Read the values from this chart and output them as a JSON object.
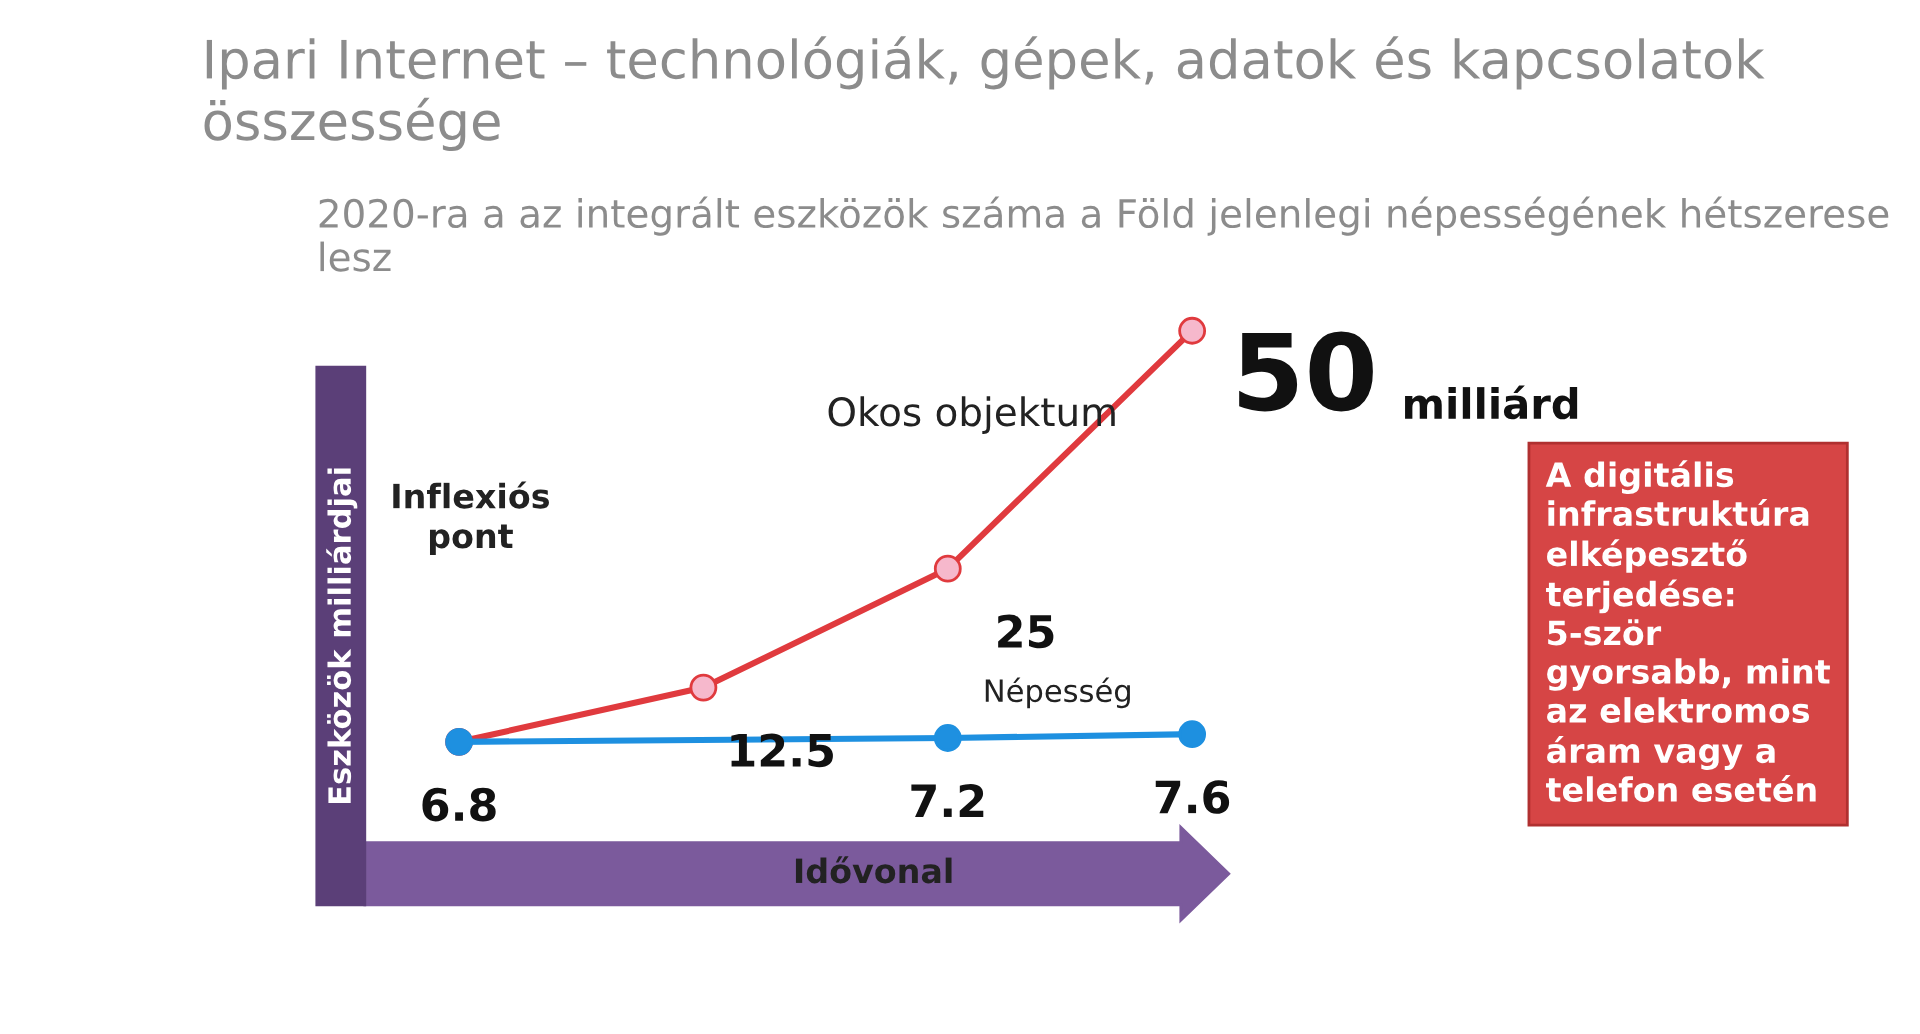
{
  "chart_data": {
    "type": "line",
    "title": "Ipari Internet – technológiák, gépek, adatok és kapcsolatok összessége",
    "subtitle": "2020-ra a az integrált eszközök száma a Föld jelenlegi népességének hétszerese lesz",
    "xlabel": "Idővonal",
    "ylabel": "Eszközök milliárdjai",
    "categories": [
      null,
      null,
      null,
      null
    ],
    "series": [
      {
        "name": "Okos objektum",
        "color": "#e03a3e",
        "values": [
          6.8,
          12.5,
          25,
          50
        ],
        "value_labels": [
          null,
          "12.5",
          "25",
          "50"
        ]
      },
      {
        "name": "Népesség",
        "color": "#1e90e0",
        "values": [
          6.8,
          null,
          7.2,
          7.6
        ],
        "value_labels": [
          "6.8",
          null,
          "7.2",
          "7.6"
        ]
      }
    ],
    "marker": "circle",
    "legend": false,
    "annotations": [
      "Inflexiós pont",
      "milliárd",
      "A digitális infrastruktúra elképesztő terjedése: 5-ször gyorsabb, mint az elektromos áram vagy a telefon esetén"
    ]
  }
}
